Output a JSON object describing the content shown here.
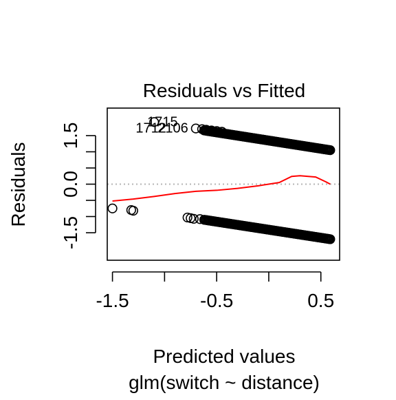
{
  "chart_data": {
    "type": "scatter",
    "title": "Residuals vs Fitted",
    "xlabel": "Predicted values",
    "sublabel": "glm(switch ~ distance)",
    "ylabel": "Residuals",
    "xlim": [
      -1.55,
      0.68
    ],
    "ylim": [
      -2.35,
      2.35
    ],
    "x_ticks": [
      -1.5,
      -1.0,
      -0.5,
      0.0,
      0.5
    ],
    "x_tick_labels": [
      "-1.5",
      "",
      "-0.5",
      "",
      "0.5"
    ],
    "y_ticks": [
      -1.5,
      -1.0,
      -0.5,
      0.0,
      0.5,
      1.0,
      1.5
    ],
    "y_tick_labels": [
      "-1.5",
      "",
      "",
      "0.0",
      "",
      "",
      "1.5"
    ],
    "grid": false,
    "reference_line": {
      "y": 0,
      "style": "dotted",
      "color": "#b3b3b3"
    },
    "point_color": "#000000",
    "smooth_color": "#ff0000",
    "points_isolated": [
      {
        "x": -1.5,
        "y": -0.75
      },
      {
        "x": -1.32,
        "y": -0.8
      },
      {
        "x": -1.3,
        "y": -0.82
      },
      {
        "x": -1.1,
        "y": 1.92
      },
      {
        "x": -0.78,
        "y": -1.03
      },
      {
        "x": -0.75,
        "y": -1.05
      },
      {
        "x": -0.72,
        "y": -1.07
      },
      {
        "x": -0.7,
        "y": 1.72
      },
      {
        "x": -0.66,
        "y": -1.08
      },
      {
        "x": -0.64,
        "y": 1.7
      },
      {
        "x": -0.6,
        "y": 1.68
      },
      {
        "x": -0.55,
        "y": 1.66
      },
      {
        "x": -0.5,
        "y": 1.64
      },
      {
        "x": -0.45,
        "y": 1.62
      }
    ],
    "upper_band": {
      "x_start": -0.62,
      "x_end": 0.59,
      "y_start": 1.66,
      "y_end": 1.05,
      "count": 130
    },
    "lower_band": {
      "x_start": -0.62,
      "x_end": 0.59,
      "y_start": -1.1,
      "y_end": -1.7,
      "count": 130
    },
    "smooth_line": [
      {
        "x": -1.5,
        "y": -0.52
      },
      {
        "x": -1.3,
        "y": -0.46
      },
      {
        "x": -1.1,
        "y": -0.38
      },
      {
        "x": -0.9,
        "y": -0.29
      },
      {
        "x": -0.7,
        "y": -0.22
      },
      {
        "x": -0.5,
        "y": -0.19
      },
      {
        "x": -0.3,
        "y": -0.13
      },
      {
        "x": -0.1,
        "y": -0.05
      },
      {
        "x": 0.1,
        "y": 0.05
      },
      {
        "x": 0.22,
        "y": 0.24
      },
      {
        "x": 0.3,
        "y": 0.26
      },
      {
        "x": 0.45,
        "y": 0.22
      },
      {
        "x": 0.55,
        "y": 0.07
      },
      {
        "x": 0.59,
        "y": 0.0
      }
    ],
    "annotations": [
      {
        "text": "1715",
        "x": -1.02,
        "y": 1.94
      },
      {
        "text": "1712",
        "x": -1.13,
        "y": 1.74
      },
      {
        "text": "2106",
        "x": -0.92,
        "y": 1.74
      }
    ]
  }
}
